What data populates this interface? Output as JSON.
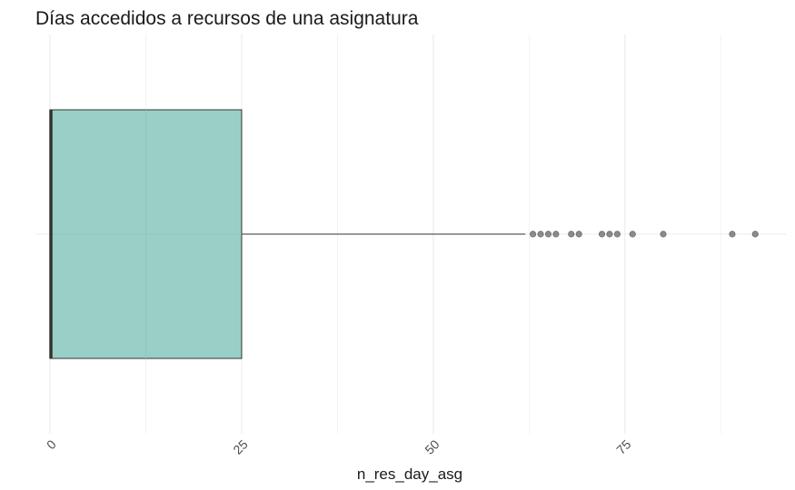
{
  "chart_data": {
    "type": "boxplot",
    "title": "Días accedidos a recursos de una asignatura",
    "xlabel": "n_res_day_asg",
    "ylabel": "",
    "xlim": [
      -1.9,
      96
    ],
    "x_ticks": [
      0,
      25,
      50,
      75
    ],
    "x_tick_labels": [
      "0",
      "25",
      "50",
      "75"
    ],
    "orientation": "horizontal",
    "grid": true,
    "legend": "none",
    "box": {
      "min": 0,
      "q1": 0,
      "median": 0,
      "q3": 25,
      "whisker_high": 62
    },
    "outliers": [
      63,
      64,
      65,
      66,
      68,
      69,
      72,
      73,
      74,
      76,
      80,
      89,
      92
    ]
  },
  "colors": {
    "box_fill": "#99cfc6",
    "box_stroke": "#333333",
    "grid": "#ebebeb",
    "outlier": "#333333"
  }
}
